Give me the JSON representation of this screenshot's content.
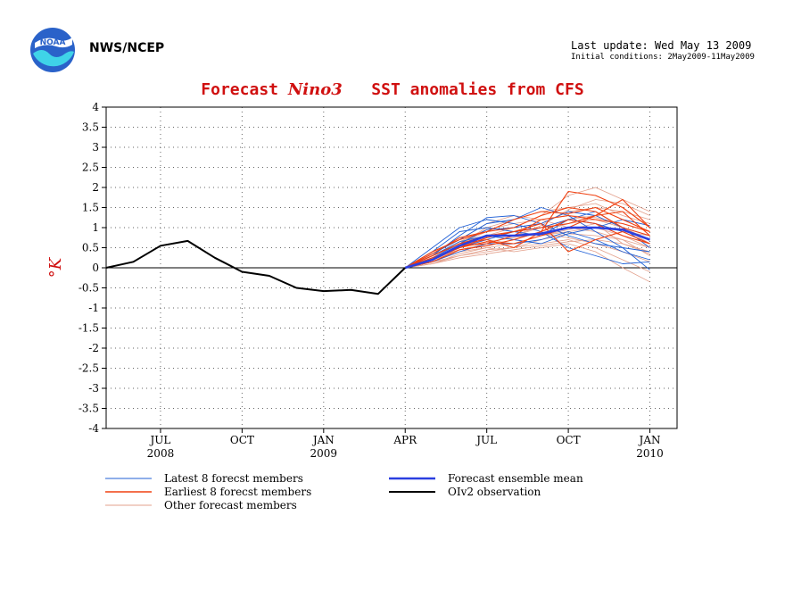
{
  "header": {
    "logo_text": "NOAA",
    "org": "NWS/NCEP",
    "last_update": "Last update: Wed May 13 2009",
    "initial_conditions": "Initial conditions: 2May2009-11May2009"
  },
  "colors": {
    "title": "#d01010",
    "latest": "#1f5fd6",
    "earliest": "#f04010",
    "other": "#e3a08c",
    "mean": "#2a3fe0",
    "obs": "#000000"
  },
  "chart_data": {
    "type": "line",
    "title_parts": [
      "Forecast ",
      "Nino3",
      "   SST anomalies from CFS"
    ],
    "ylabel": "°K",
    "ylim": [
      -4,
      4
    ],
    "yticks": [
      4,
      3.5,
      3,
      2.5,
      2,
      1.5,
      1,
      0.5,
      0,
      -0.5,
      -1,
      -1.5,
      -2,
      -2.5,
      -3,
      -3.5,
      -4
    ],
    "xlim": [
      "2008-05",
      "2010-02"
    ],
    "xticks": [
      {
        "month": "2008-07",
        "label": "JUL",
        "year": "2008"
      },
      {
        "month": "2008-10",
        "label": "OCT",
        "year": ""
      },
      {
        "month": "2009-01",
        "label": "JAN",
        "year": "2009"
      },
      {
        "month": "2009-04",
        "label": "APR",
        "year": ""
      },
      {
        "month": "2009-07",
        "label": "JUL",
        "year": ""
      },
      {
        "month": "2009-10",
        "label": "OCT",
        "year": ""
      },
      {
        "month": "2010-01",
        "label": "JAN",
        "year": "2010"
      }
    ],
    "grid": true,
    "forecast_months": [
      "2009-04",
      "2009-05",
      "2009-06",
      "2009-07",
      "2009-08",
      "2009-09",
      "2009-10",
      "2009-11",
      "2009-12",
      "2010-01"
    ],
    "observation": {
      "name": "OIv2 observation",
      "months": [
        "2008-05",
        "2008-06",
        "2008-07",
        "2008-08",
        "2008-09",
        "2008-10",
        "2008-11",
        "2008-12",
        "2009-01",
        "2009-02",
        "2009-03",
        "2009-04"
      ],
      "values": [
        0.0,
        0.15,
        0.55,
        0.67,
        0.25,
        -0.1,
        -0.2,
        -0.5,
        -0.58,
        -0.55,
        -0.65,
        0.0
      ]
    },
    "ensemble_mean": {
      "name": "Forecast ensemble mean",
      "values": [
        0.0,
        0.2,
        0.55,
        0.8,
        0.8,
        0.85,
        1.0,
        1.0,
        0.95,
        0.7
      ]
    },
    "latest_members": {
      "name": "Latest 8 forecst members",
      "members": [
        [
          0.0,
          0.5,
          1.0,
          1.2,
          1.1,
          0.9,
          0.5,
          0.3,
          0.1,
          0.15
        ],
        [
          0.0,
          0.3,
          0.8,
          1.25,
          1.3,
          1.1,
          1.4,
          1.3,
          1.0,
          0.8
        ],
        [
          0.0,
          0.2,
          0.5,
          0.7,
          0.9,
          0.8,
          1.2,
          1.1,
          0.9,
          0.6
        ],
        [
          0.0,
          0.35,
          0.7,
          1.1,
          1.2,
          1.5,
          1.3,
          0.9,
          0.5,
          -0.05
        ],
        [
          0.0,
          0.15,
          0.4,
          0.6,
          0.6,
          0.7,
          0.9,
          0.7,
          0.4,
          0.2
        ],
        [
          0.0,
          0.4,
          0.9,
          1.0,
          0.9,
          1.0,
          1.2,
          1.4,
          1.0,
          0.5
        ],
        [
          0.0,
          0.25,
          0.6,
          0.95,
          1.0,
          1.1,
          0.8,
          0.6,
          0.5,
          0.4
        ],
        [
          0.0,
          0.3,
          0.65,
          0.8,
          0.7,
          0.6,
          0.85,
          1.0,
          1.2,
          1.05
        ]
      ]
    },
    "earliest_members": {
      "name": "Earliest 8 forecst members",
      "members": [
        [
          0.0,
          0.3,
          0.6,
          0.7,
          0.5,
          0.9,
          1.9,
          1.8,
          1.5,
          1.0
        ],
        [
          0.0,
          0.35,
          0.75,
          0.9,
          1.0,
          1.3,
          1.5,
          1.4,
          1.0,
          0.8
        ],
        [
          0.0,
          0.2,
          0.55,
          0.6,
          0.8,
          1.2,
          1.3,
          1.2,
          1.1,
          0.9
        ],
        [
          0.0,
          0.25,
          0.5,
          0.65,
          0.6,
          0.8,
          1.0,
          1.3,
          1.7,
          1.0
        ],
        [
          0.0,
          0.3,
          0.6,
          0.8,
          0.9,
          1.1,
          0.4,
          0.7,
          0.9,
          0.6
        ],
        [
          0.0,
          0.15,
          0.45,
          0.55,
          0.7,
          0.9,
          1.2,
          1.1,
          0.8,
          0.6
        ],
        [
          0.0,
          0.4,
          0.7,
          0.9,
          1.2,
          1.4,
          1.35,
          1.5,
          1.2,
          0.9
        ],
        [
          0.0,
          0.2,
          0.5,
          0.75,
          0.9,
          1.0,
          1.1,
          1.3,
          1.4,
          0.8
        ]
      ]
    },
    "other_members": {
      "name": "Other forecast members",
      "members": [
        [
          0.0,
          0.2,
          0.5,
          0.8,
          1.0,
          1.3,
          1.8,
          2.0,
          1.7,
          1.4
        ],
        [
          0.0,
          0.3,
          0.6,
          1.0,
          1.2,
          1.4,
          1.5,
          1.6,
          1.3,
          1.1
        ],
        [
          0.0,
          0.15,
          0.4,
          0.6,
          0.8,
          1.0,
          1.2,
          1.3,
          1.0,
          0.7
        ],
        [
          0.0,
          0.25,
          0.5,
          0.7,
          0.6,
          0.8,
          0.9,
          1.0,
          0.8,
          0.5
        ],
        [
          0.0,
          0.1,
          0.3,
          0.4,
          0.5,
          0.6,
          0.7,
          0.5,
          0.2,
          -0.1
        ],
        [
          0.0,
          0.2,
          0.45,
          0.55,
          0.7,
          0.9,
          1.1,
          1.2,
          1.0,
          0.6
        ],
        [
          0.0,
          0.35,
          0.7,
          1.1,
          1.3,
          1.2,
          1.0,
          0.9,
          0.7,
          0.3
        ],
        [
          0.0,
          0.2,
          0.4,
          0.5,
          0.4,
          0.5,
          0.6,
          0.4,
          0.0,
          -0.35
        ],
        [
          0.0,
          0.3,
          0.6,
          0.9,
          1.0,
          1.1,
          1.4,
          1.5,
          1.4,
          1.2
        ],
        [
          0.0,
          0.1,
          0.35,
          0.5,
          0.6,
          0.8,
          0.95,
          1.1,
          0.9,
          0.8
        ],
        [
          0.0,
          0.25,
          0.55,
          0.7,
          0.9,
          1.0,
          1.2,
          1.1,
          0.6,
          0.4
        ],
        [
          0.0,
          0.15,
          0.3,
          0.45,
          0.5,
          0.7,
          0.85,
          0.8,
          0.7,
          0.5
        ],
        [
          0.0,
          0.3,
          0.65,
          0.95,
          1.1,
          1.2,
          1.3,
          1.25,
          1.1,
          0.9
        ],
        [
          0.0,
          0.2,
          0.5,
          0.65,
          0.75,
          0.85,
          0.75,
          0.6,
          0.4,
          0.15
        ],
        [
          0.0,
          0.25,
          0.45,
          0.6,
          0.8,
          1.05,
          1.45,
          1.7,
          1.6,
          1.3
        ],
        [
          0.0,
          0.1,
          0.25,
          0.35,
          0.45,
          0.55,
          0.65,
          0.7,
          0.6,
          0.35
        ]
      ]
    }
  },
  "legend": {
    "latest": "Latest 8 forecst members",
    "earliest": "Earliest 8 forecst members",
    "other": "Other forecast members",
    "mean": "Forecast ensemble mean",
    "obs": "OIv2 observation"
  }
}
